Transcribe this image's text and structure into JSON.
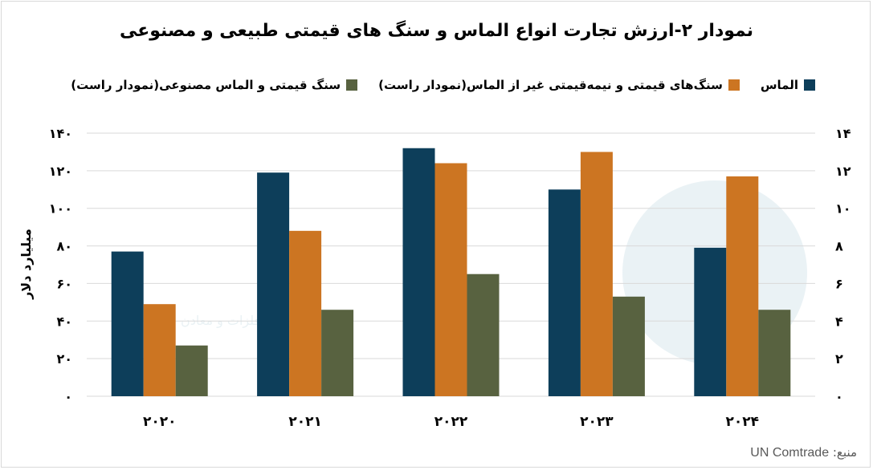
{
  "chart_data": {
    "type": "bar",
    "title": "نمودار ۲-ارزش تجارت انواع الماس و سنگ های قیمتی طبیعی و مصنوعی",
    "ylabel_left": "میلیارد دلار",
    "categories": [
      "۲۰۲۰",
      "۲۰۲۱",
      "۲۰۲۲",
      "۲۰۲۳",
      "۲۰۲۴"
    ],
    "ylim_left": [
      0,
      140
    ],
    "ylim_right": [
      0,
      14
    ],
    "yticks_left": [
      0,
      20,
      40,
      60,
      80,
      100,
      120,
      140
    ],
    "yticks_left_labels": [
      "۰",
      "۲۰",
      "۴۰",
      "۶۰",
      "۸۰",
      "۱۰۰",
      "۱۲۰",
      "۱۴۰"
    ],
    "yticks_right": [
      0,
      2,
      4,
      6,
      8,
      10,
      12,
      14
    ],
    "yticks_right_labels": [
      "۰",
      "۲",
      "۴",
      "۶",
      "۸",
      "۱۰",
      "۱۲",
      "۱۴"
    ],
    "series": [
      {
        "name": "الماس",
        "axis": "left",
        "color": "#0d3e5a",
        "values": [
          77,
          119,
          132,
          110,
          79
        ]
      },
      {
        "name": "سنگ‌های قیمتی و نیمه‌قیمتی غیر از الماس(نمودار راست)",
        "axis": "right",
        "color": "#cc7522",
        "values": [
          4.9,
          8.8,
          12.4,
          13,
          11.7
        ]
      },
      {
        "name": "سنگ قیمتی و الماس مصنوعی(نمودار راست)",
        "axis": "right",
        "color": "#586240",
        "values": [
          2.7,
          4.6,
          6.5,
          5.3,
          4.6
        ]
      }
    ],
    "legend_position": "top",
    "grid": true
  },
  "source": {
    "label": "منبع:",
    "name": "UN Comtrade"
  },
  "watermark": {
    "text": "شرکت بازرگانی فلزات و معادن"
  }
}
